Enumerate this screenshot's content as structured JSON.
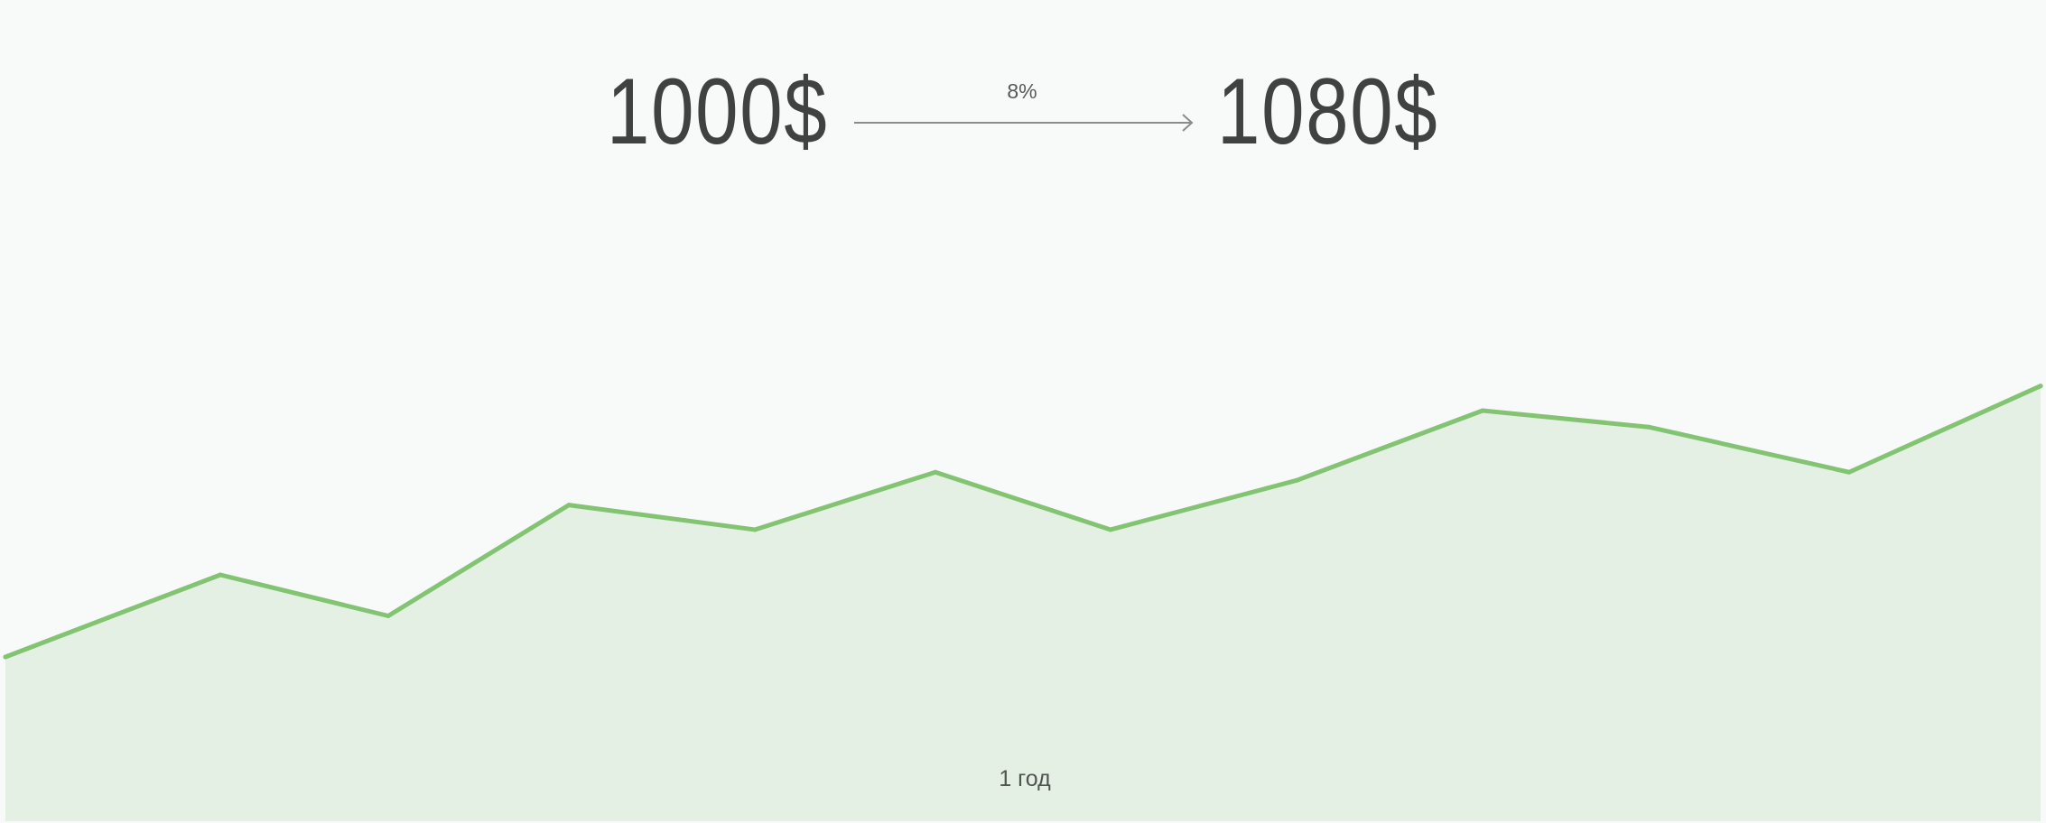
{
  "header": {
    "start_amount": "1000$",
    "rate": "8%",
    "end_amount": "1080$"
  },
  "chart_data": {
    "type": "area",
    "title": "",
    "xlabel": "1 год",
    "ylabel": "",
    "grid": false,
    "legend": "none",
    "line_color": "#82c472",
    "fill_color": "#e4f0e3",
    "background_color": "#f8faf9",
    "ylim": [
      0,
      100
    ],
    "series": [
      {
        "values": [
          20,
          30,
          25,
          38.5,
          35.5,
          42.5,
          35.5,
          41.5,
          50,
          48,
          42.5,
          53
        ]
      }
    ]
  }
}
